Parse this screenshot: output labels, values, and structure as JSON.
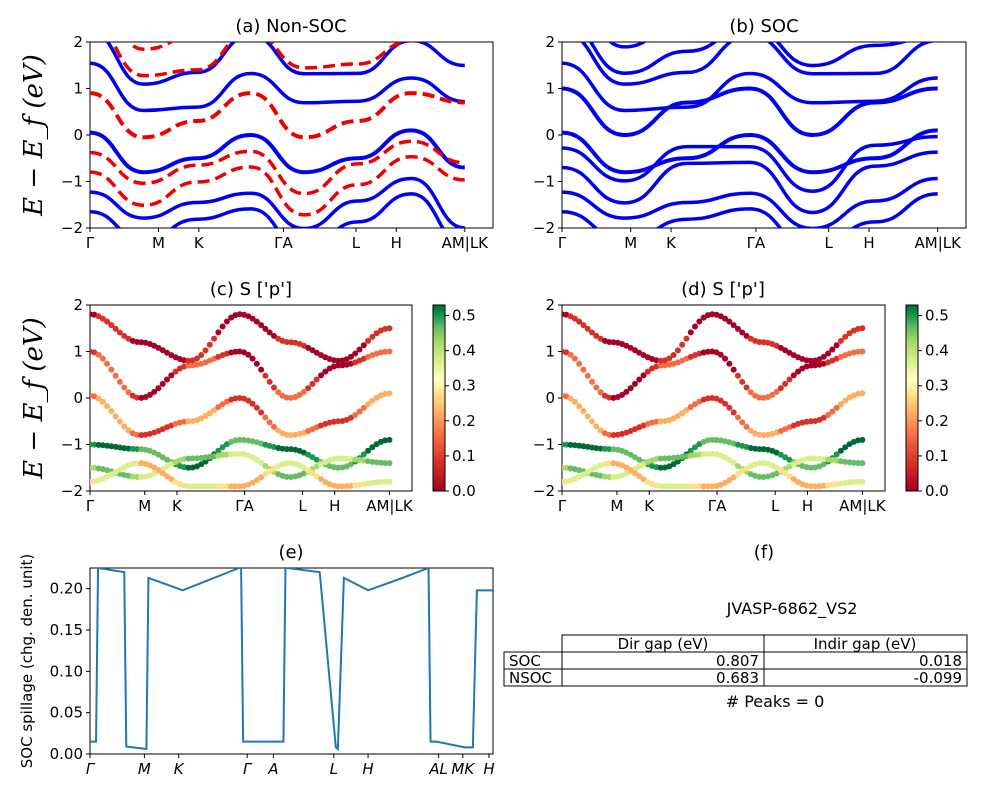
{
  "chart_data": [
    {
      "id": "a",
      "type": "line",
      "title": "(a) Non-SOC",
      "ylabel": "E − E_f (eV)",
      "ylim": [
        -2,
        2
      ],
      "yticks": [
        "2",
        "1",
        "0",
        "−1",
        "−2"
      ],
      "xticks": [
        "Γ",
        "M",
        "K",
        "ΓA",
        "L",
        "H",
        "AM|LK"
      ],
      "series": [
        {
          "color": "#0000ee",
          "dashed": false,
          "values": [
            0.05,
            -0.8,
            -0.5,
            0.0,
            -0.8,
            -0.5,
            0.1,
            -0.7
          ]
        },
        {
          "color": "#ee0000",
          "dashed": true,
          "values": [
            0.9,
            -0.05,
            0.3,
            0.9,
            -0.05,
            0.3,
            0.9,
            0.7
          ]
        }
      ]
    },
    {
      "id": "b",
      "type": "line",
      "title": "(b) SOC",
      "ylim": [
        -2,
        2
      ],
      "yticks": [
        "2",
        "1",
        "0",
        "−1",
        "−2"
      ],
      "xticks": [
        "Γ",
        "M",
        "K",
        "ΓA",
        "L",
        "H",
        "AM|LK"
      ],
      "series": [
        {
          "color": "#0000ee",
          "values": [
            1.0,
            0.0,
            0.7,
            1.0,
            0.0,
            0.7,
            1.0
          ]
        },
        {
          "color": "#0000ee",
          "values": [
            0.05,
            -0.8,
            -0.5,
            0.0,
            -0.8,
            -0.5,
            0.1
          ]
        }
      ]
    },
    {
      "id": "c",
      "type": "scatter",
      "title": "(c)  S ['p']",
      "ylabel": "E − E_f (eV)",
      "ylim": [
        -2,
        2
      ],
      "yticks": [
        "2",
        "1",
        "0",
        "−1",
        "−2"
      ],
      "xticks": [
        "Γ",
        "M",
        "K",
        "ΓA",
        "L",
        "H",
        "AM|LK"
      ],
      "colorbar": {
        "min": 0.0,
        "max": 0.5,
        "ticks": [
          "0.5",
          "0.4",
          "0.3",
          "0.2",
          "0.1",
          "0.0"
        ]
      }
    },
    {
      "id": "d",
      "type": "scatter",
      "title": "(d) S ['p']",
      "ylim": [
        -2,
        2
      ],
      "yticks": [
        "2",
        "1",
        "0",
        "−1",
        "−2"
      ],
      "xticks": [
        "Γ",
        "M",
        "K",
        "ΓA",
        "L",
        "H",
        "AM|LK"
      ],
      "colorbar": {
        "min": 0.0,
        "max": 0.5,
        "ticks": [
          "0.5",
          "0.4",
          "0.3",
          "0.2",
          "0.1",
          "0.0"
        ]
      }
    },
    {
      "id": "e",
      "type": "line",
      "title": "(e)",
      "ylabel": "SOC spillage (chg. den. unit)",
      "ylim": [
        0,
        0.225
      ],
      "yticks": [
        "0.20",
        "0.15",
        "0.10",
        "0.05",
        "0.00"
      ],
      "xticks": [
        "Γ",
        "M",
        "K",
        "Γ",
        "A",
        "L",
        "H",
        "AL",
        "MK",
        "H"
      ],
      "series": [
        {
          "color": "#1f77b4",
          "x": [
            0,
            0.015,
            0.02,
            0.085,
            0.09,
            0.14,
            0.145,
            0.23,
            0.37,
            0.375,
            0.38,
            0.48,
            0.485,
            0.49,
            0.57,
            0.61,
            0.615,
            0.63,
            0.69,
            0.77,
            0.84,
            0.845,
            0.86,
            0.93,
            0.935,
            0.95,
            0.96,
            1.0
          ],
          "values": [
            0.015,
            0.015,
            0.225,
            0.22,
            0.009,
            0.006,
            0.213,
            0.198,
            0.225,
            0.225,
            0.015,
            0.015,
            0.225,
            0.225,
            0.22,
            0.008,
            0.006,
            0.213,
            0.198,
            0.212,
            0.225,
            0.015,
            0.015,
            0.008,
            0.008,
            0.008,
            0.198,
            0.198
          ]
        }
      ]
    }
  ],
  "panel_f": {
    "title": "(f)",
    "subtitle": "JVASP-6862_VS2",
    "headers": [
      "",
      "Dir gap (eV)",
      "Indir gap (eV)"
    ],
    "rows": [
      [
        "SOC",
        "0.807",
        "0.018"
      ],
      [
        "NSOC",
        "0.683",
        "-0.099"
      ]
    ],
    "peaks": "# Peaks = 0"
  },
  "colors": {
    "blue": "#0000ee",
    "red": "#ee0000",
    "spillage": "#1f77b4"
  }
}
